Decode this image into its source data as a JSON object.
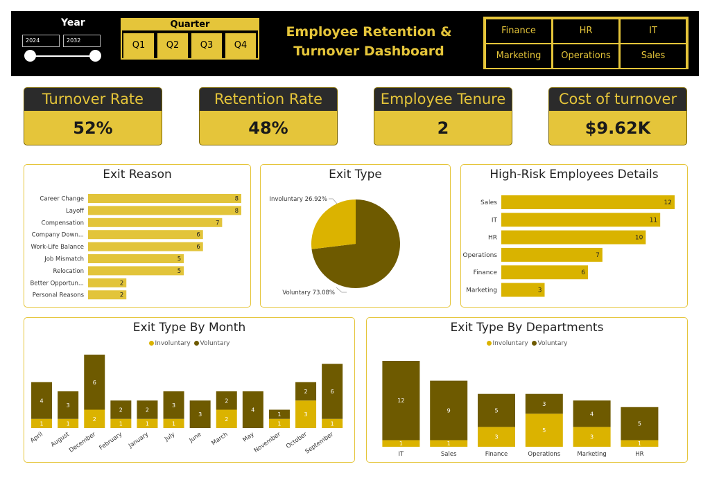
{
  "header": {
    "year_label": "Year",
    "year_start": "2024",
    "year_end": "2032",
    "quarter_label": "Quarter",
    "quarters": [
      "Q1",
      "Q2",
      "Q3",
      "Q4"
    ],
    "title_line1": "Employee Retention &",
    "title_line2": "Turnover Dashboard",
    "departments": [
      "Finance",
      "HR",
      "IT",
      "Marketing",
      "Operations",
      "Sales"
    ]
  },
  "kpis": [
    {
      "title": "Turnover Rate",
      "value": "52%"
    },
    {
      "title": "Retention Rate",
      "value": "48%"
    },
    {
      "title": "Employee Tenure",
      "value": "2"
    },
    {
      "title": "Cost of turnover",
      "value": "$9.62K"
    }
  ],
  "colors": {
    "involuntary": "#dbb300",
    "voluntary": "#6e5a00",
    "bar_gold": "#e2c43a",
    "bar_dark_gold": "#d9b300"
  },
  "chart_data": [
    {
      "id": "exit_reason",
      "type": "bar",
      "orientation": "horizontal",
      "title": "Exit Reason",
      "categories": [
        "Career Change",
        "Layoff",
        "Compensation",
        "Company Down...",
        "Work-Life Balance",
        "Job Mismatch",
        "Relocation",
        "Better Opportun...",
        "Personal Reasons"
      ],
      "values": [
        8,
        8,
        7,
        6,
        6,
        5,
        5,
        2,
        2
      ],
      "xlim": [
        0,
        8
      ]
    },
    {
      "id": "exit_type",
      "type": "pie",
      "title": "Exit Type",
      "slices": [
        {
          "label": "Voluntary 73.08%",
          "value": 73.08
        },
        {
          "label": "Involuntary 26.92%",
          "value": 26.92
        }
      ]
    },
    {
      "id": "high_risk",
      "type": "bar",
      "orientation": "horizontal",
      "title": "High-Risk Employees Details",
      "categories": [
        "Sales",
        "IT",
        "HR",
        "Operations",
        "Finance",
        "Marketing"
      ],
      "values": [
        12,
        11,
        10,
        7,
        6,
        3
      ],
      "xlim": [
        0,
        12
      ]
    },
    {
      "id": "by_month",
      "type": "bar",
      "stacked": true,
      "title": "Exit Type By Month",
      "categories": [
        "April",
        "August",
        "December",
        "February",
        "January",
        "July",
        "June",
        "March",
        "May",
        "November",
        "October",
        "September"
      ],
      "series": [
        {
          "name": "Involuntary",
          "values": [
            1,
            1,
            2,
            1,
            1,
            1,
            0,
            2,
            0,
            1,
            3,
            1
          ]
        },
        {
          "name": "Voluntary",
          "values": [
            4,
            3,
            6,
            2,
            2,
            3,
            3,
            2,
            4,
            1,
            2,
            6
          ]
        }
      ],
      "ylim": [
        0,
        8
      ]
    },
    {
      "id": "by_department",
      "type": "bar",
      "stacked": true,
      "title": "Exit Type By Departments",
      "categories": [
        "IT",
        "Sales",
        "Finance",
        "Operations",
        "Marketing",
        "HR"
      ],
      "series": [
        {
          "name": "Involuntary",
          "values": [
            1,
            1,
            3,
            5,
            3,
            1
          ]
        },
        {
          "name": "Voluntary",
          "values": [
            12,
            9,
            5,
            3,
            4,
            5
          ]
        }
      ],
      "ylim": [
        0,
        13
      ]
    }
  ]
}
